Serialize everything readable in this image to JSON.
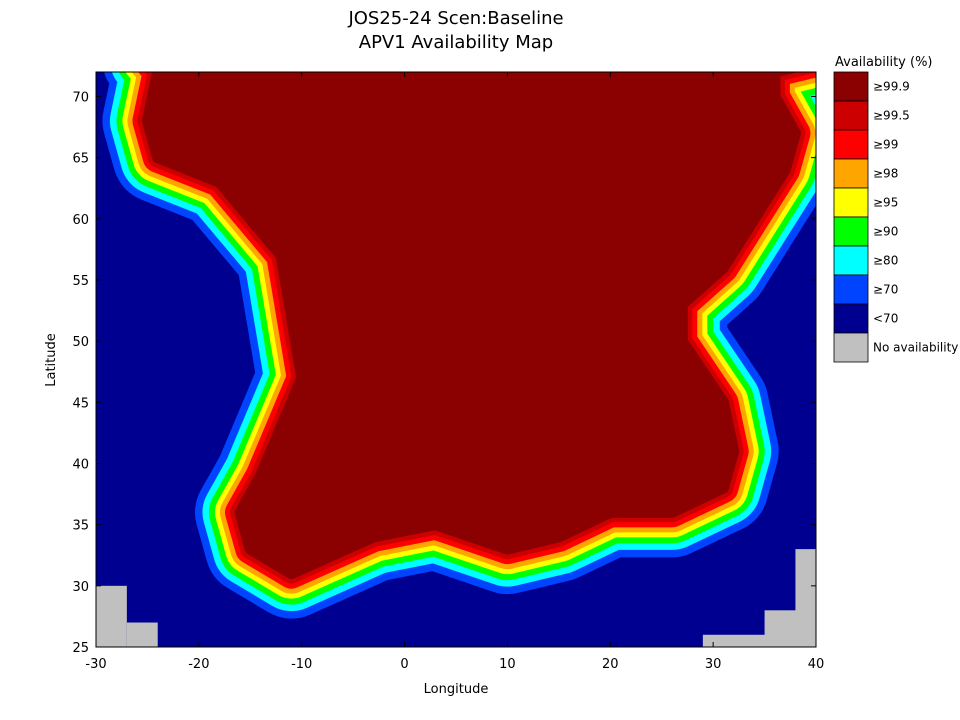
{
  "chart_data": {
    "type": "heatmap",
    "title": "JOS25-24 Scen:Baseline",
    "subtitle": "APV1 Availability Map",
    "xlabel": "Longitude",
    "ylabel": "Latitude",
    "xlim": [
      -30,
      40
    ],
    "ylim": [
      25,
      72
    ],
    "xticks": [
      -30,
      -20,
      -10,
      0,
      10,
      20,
      30,
      40
    ],
    "yticks": [
      25,
      30,
      35,
      40,
      45,
      50,
      55,
      60,
      65,
      70
    ],
    "legend": {
      "title": "Availability (%)",
      "position": "right",
      "entries": [
        {
          "label": "≥99.9",
          "color": "#8b0000"
        },
        {
          "label": "≥99.5",
          "color": "#cc0000"
        },
        {
          "label": "≥99",
          "color": "#ff0000"
        },
        {
          "label": "≥98",
          "color": "#ffa500"
        },
        {
          "label": "≥95",
          "color": "#ffff00"
        },
        {
          "label": "≥90",
          "color": "#00ff00"
        },
        {
          "label": "≥80",
          "color": "#00ffff"
        },
        {
          "label": "≥70",
          "color": "#0044ff"
        },
        {
          "label": "<70",
          "color": "#000090"
        },
        {
          "label": "No availability",
          "color": "#c0c0c0"
        }
      ]
    },
    "no_availability_regions": [
      {
        "lon": [
          -30,
          -27
        ],
        "lat": [
          25,
          30
        ]
      },
      {
        "lon": [
          -27,
          -24
        ],
        "lat": [
          25,
          27
        ]
      },
      {
        "lon": [
          29,
          40
        ],
        "lat": [
          25,
          26
        ]
      },
      {
        "lon": [
          35,
          40
        ],
        "lat": [
          25,
          28
        ]
      },
      {
        "lon": [
          38,
          40
        ],
        "lat": [
          25,
          33
        ]
      }
    ],
    "core_region_boundary": [
      [
        -24,
        72
      ],
      [
        -25,
        68
      ],
      [
        -24,
        65
      ],
      [
        -18,
        63
      ],
      [
        -15,
        60
      ],
      [
        -12,
        57
      ],
      [
        -11,
        52
      ],
      [
        -10,
        47
      ],
      [
        -12,
        43
      ],
      [
        -14,
        39
      ],
      [
        -16,
        36
      ],
      [
        -15,
        33
      ],
      [
        -11,
        31
      ],
      [
        -3,
        34
      ],
      [
        3,
        35
      ],
      [
        10,
        33
      ],
      [
        15,
        34
      ],
      [
        20,
        36
      ],
      [
        26,
        36
      ],
      [
        31,
        38
      ],
      [
        32,
        41
      ],
      [
        31,
        45
      ],
      [
        27,
        50
      ],
      [
        27,
        53
      ],
      [
        31,
        56
      ],
      [
        34,
        60
      ],
      [
        37,
        64
      ],
      [
        38,
        67
      ],
      [
        36,
        70
      ],
      [
        36,
        72
      ]
    ],
    "gradient_note": ""
  }
}
